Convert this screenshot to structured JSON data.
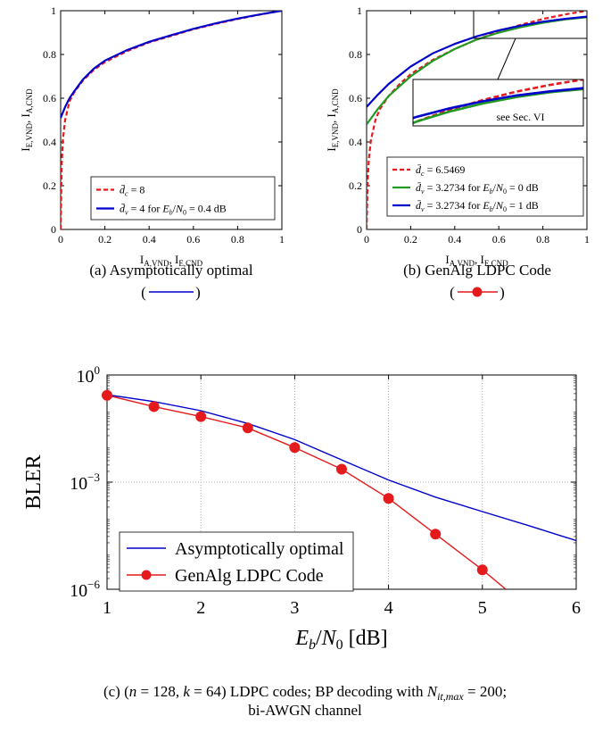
{
  "colors": {
    "red": "#e41a1c",
    "blue": "#0000cc",
    "green": "#229922",
    "grid": "#999999"
  },
  "chart_data": [
    {
      "id": "a",
      "type": "line",
      "caption": "(a) Asymptotically optimal",
      "caption_marker": "blue line",
      "xlabel_html": "I<tspan font-size='9' dy='3'>A,VND</tspan><tspan dy='-3'>, I</tspan><tspan font-size='9' dy='3'>E,CND</tspan>",
      "ylabel_html": "I<tspan font-size='9' dy='3'>E,VND</tspan><tspan dy='-3'>, I</tspan><tspan font-size='9' dy='3'>A,CND</tspan>",
      "xlim": [
        0,
        1
      ],
      "ylim": [
        0,
        1
      ],
      "xticks": [
        "0",
        "0.2",
        "0.4",
        "0.6",
        "0.8",
        "1"
      ],
      "yticks": [
        "0",
        "0.2",
        "0.4",
        "0.6",
        "0.8",
        "1"
      ],
      "legend": [
        "d̄c = 8",
        "d̄v = 4 for Eb/N0 = 0.4 dB"
      ],
      "series": [
        {
          "name": "d̄c = 8",
          "color": "red",
          "dash": true,
          "x": [
            0,
            0.005,
            0.01,
            0.02,
            0.04,
            0.06,
            0.1,
            0.15,
            0.2,
            0.3,
            0.4,
            0.5,
            0.6,
            0.7,
            0.8,
            0.9,
            1.0
          ],
          "y": [
            0,
            0.3,
            0.41,
            0.5,
            0.585,
            0.625,
            0.68,
            0.73,
            0.765,
            0.815,
            0.855,
            0.885,
            0.915,
            0.94,
            0.962,
            0.982,
            1.0
          ]
        },
        {
          "name": "d̄v = 4 for Eb/N0 = 0.4 dB",
          "color": "blue",
          "dash": false,
          "x": [
            0,
            0.02,
            0.04,
            0.06,
            0.1,
            0.15,
            0.2,
            0.3,
            0.4,
            0.5,
            0.6,
            0.7,
            0.8,
            0.9,
            1.0
          ],
          "y": [
            0.51,
            0.56,
            0.6,
            0.63,
            0.685,
            0.735,
            0.772,
            0.82,
            0.858,
            0.888,
            0.917,
            0.942,
            0.964,
            0.983,
            1.0
          ]
        }
      ]
    },
    {
      "id": "b",
      "type": "line",
      "caption": "(b) GenAlg LDPC Code",
      "caption_marker": "red line with circle",
      "xlabel_html": "I<tspan font-size='9' dy='3'>A,VND</tspan><tspan dy='-3'>, I</tspan><tspan font-size='9' dy='3'>E,CND</tspan>",
      "ylabel_html": "I<tspan font-size='9' dy='3'>E,VND</tspan><tspan dy='-3'>, I</tspan><tspan font-size='9' dy='3'>A,CND</tspan>",
      "xlim": [
        0,
        1
      ],
      "ylim": [
        0,
        1
      ],
      "xticks": [
        "0",
        "0.2",
        "0.4",
        "0.6",
        "0.8",
        "1"
      ],
      "yticks": [
        "0",
        "0.2",
        "0.4",
        "0.6",
        "0.8",
        "1"
      ],
      "inset_note": "see Sec. VI",
      "legend": [
        "d̄c = 6.5469",
        "d̄v = 3.2734 for Eb/N0 = 0 dB",
        "d̄v = 3.2734 for Eb/N0 = 1 dB"
      ],
      "series": [
        {
          "name": "d̄c = 6.5469",
          "color": "red",
          "dash": true,
          "x": [
            0,
            0.005,
            0.01,
            0.02,
            0.04,
            0.06,
            0.1,
            0.15,
            0.2,
            0.3,
            0.4,
            0.5,
            0.6,
            0.7,
            0.8,
            0.9,
            1.0
          ],
          "y": [
            0,
            0.22,
            0.32,
            0.41,
            0.5,
            0.55,
            0.61,
            0.665,
            0.71,
            0.775,
            0.825,
            0.868,
            0.905,
            0.936,
            0.962,
            0.983,
            1.0
          ]
        },
        {
          "name": "d̄v = 3.2734 for Eb/N0 = 0 dB",
          "color": "green",
          "dash": false,
          "x": [
            0,
            0.05,
            0.1,
            0.2,
            0.3,
            0.4,
            0.5,
            0.6,
            0.7,
            0.8,
            0.9,
            1.0
          ],
          "y": [
            0.48,
            0.55,
            0.61,
            0.7,
            0.77,
            0.825,
            0.868,
            0.9,
            0.925,
            0.945,
            0.96,
            0.97
          ]
        },
        {
          "name": "d̄v = 3.2734 for Eb/N0 = 1 dB",
          "color": "blue",
          "dash": false,
          "x": [
            0,
            0.05,
            0.1,
            0.2,
            0.3,
            0.4,
            0.5,
            0.6,
            0.7,
            0.8,
            0.9,
            1.0
          ],
          "y": [
            0.56,
            0.615,
            0.665,
            0.745,
            0.805,
            0.848,
            0.883,
            0.91,
            0.932,
            0.95,
            0.963,
            0.973
          ]
        }
      ]
    },
    {
      "id": "c",
      "type": "line",
      "yscale": "log",
      "grid": true,
      "caption_line1": "(c) (n = 128, k = 64) LDPC codes; BP decoding with N_it,max = 200;",
      "caption_line2": "bi-AWGN channel",
      "xlabel": "Eb/N0 [dB]",
      "ylabel": "BLER",
      "xlim": [
        1,
        6
      ],
      "ylim": [
        1e-06,
        1
      ],
      "xticks": [
        "1",
        "2",
        "3",
        "4",
        "5",
        "6"
      ],
      "legend": [
        "Asymptotically optimal",
        "GenAlg LDPC Code"
      ],
      "legend_position": "bottom-left",
      "series": [
        {
          "name": "Asymptotically optimal",
          "color": "blue",
          "markers": false,
          "x": [
            1,
            1.5,
            2,
            2.5,
            3,
            3.5,
            4,
            4.5,
            5,
            5.5,
            6
          ],
          "y": [
            0.28,
            0.18,
            0.1,
            0.044,
            0.0155,
            0.0042,
            0.00115,
            0.00038,
            0.00015,
            6e-05,
            2.3e-05
          ]
        },
        {
          "name": "GenAlg LDPC Code",
          "color": "red",
          "markers": true,
          "x": [
            1,
            1.5,
            2,
            2.5,
            3,
            3.5,
            4,
            4.5,
            5
          ],
          "y": [
            0.27,
            0.13,
            0.0685,
            0.033,
            0.0093,
            0.0023,
            0.00035,
            3.5e-05,
            3.5e-06
          ],
          "tail_x": [
            5.0,
            5.25
          ],
          "tail_y": [
            3.5e-06,
            1e-06
          ]
        }
      ]
    }
  ]
}
